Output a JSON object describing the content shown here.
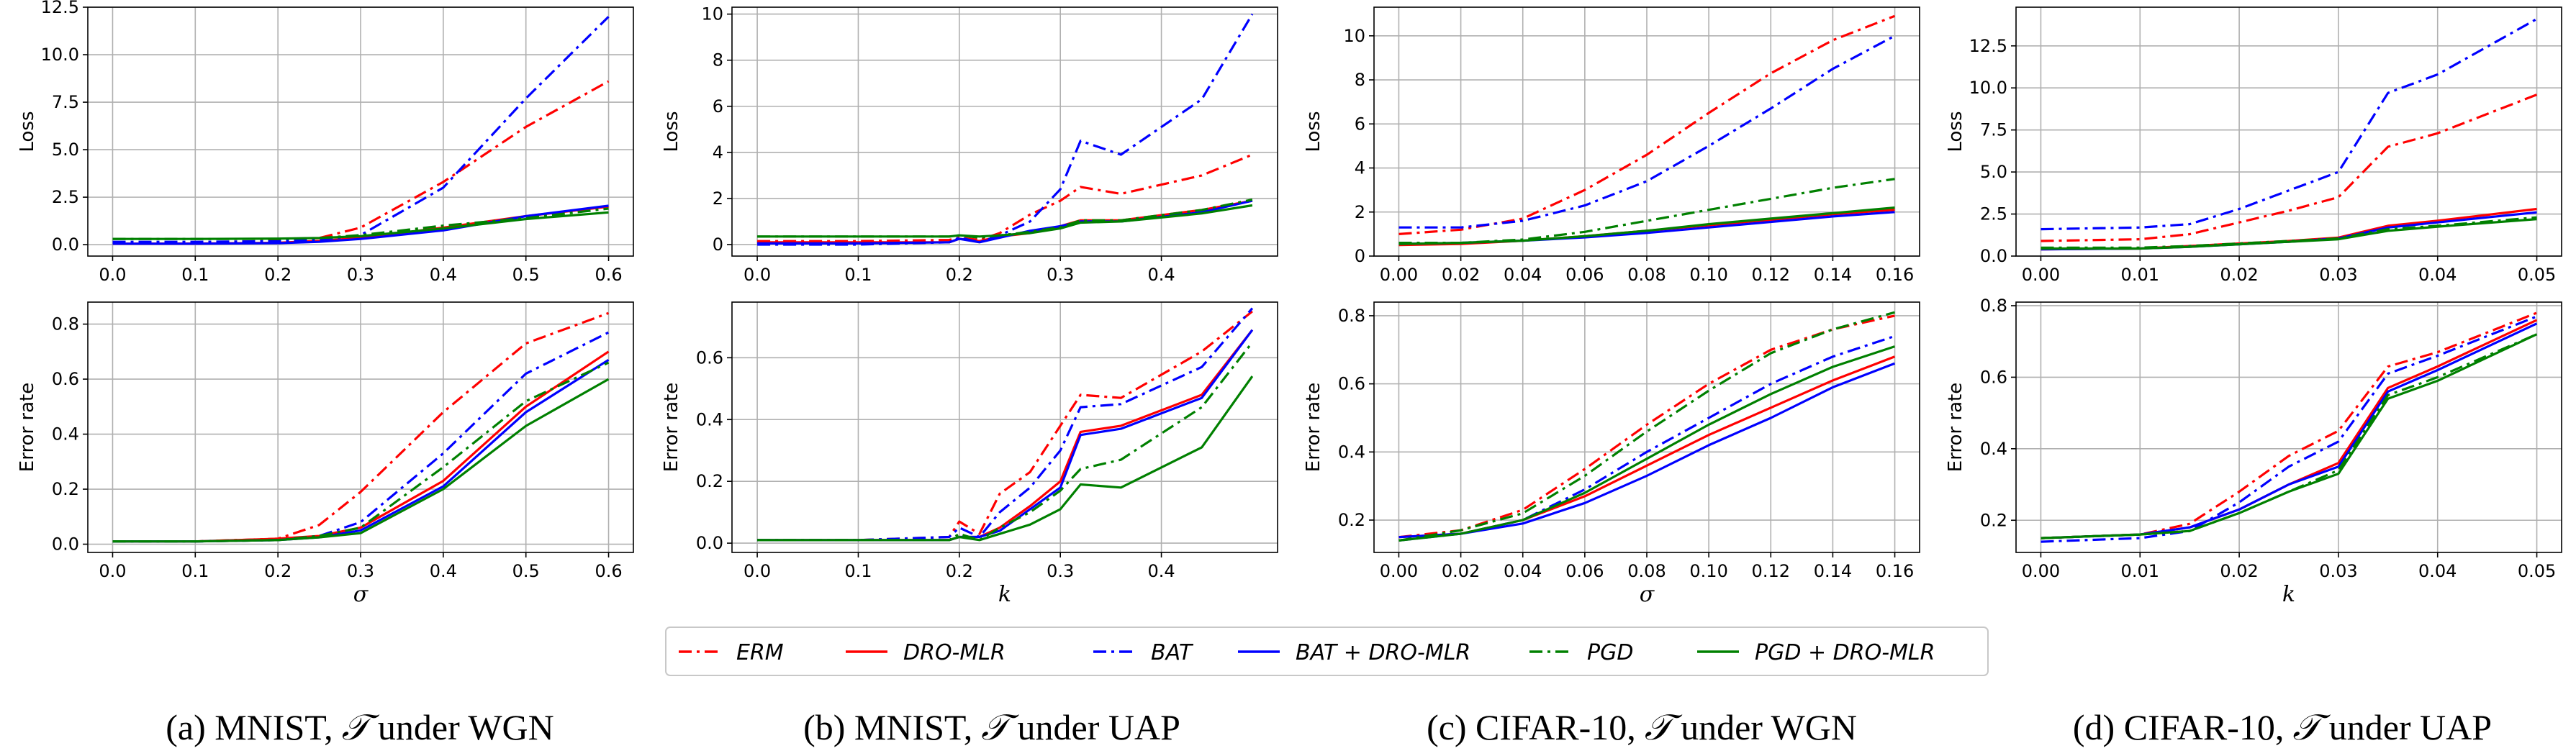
{
  "figure": {
    "captions": [
      {
        "letter": "(a) MNIST,",
        "symbol": "𝒯",
        "rest": "under WGN"
      },
      {
        "letter": "(b) MNIST,",
        "symbol": "𝒯",
        "rest": "under UAP"
      },
      {
        "letter": "(c) CIFAR-10,",
        "symbol": "𝒯",
        "rest": "under WGN"
      },
      {
        "letter": "(d) CIFAR-10,",
        "symbol": "𝒯",
        "rest": "under UAP"
      }
    ]
  },
  "legend": [
    {
      "label": "ERM",
      "color": "#ff0000",
      "dash": "dashdot"
    },
    {
      "label": "DRO-MLR",
      "color": "#ff0000",
      "dash": "solid"
    },
    {
      "label": "BAT",
      "color": "#0000ff",
      "dash": "dashdot"
    },
    {
      "label": "BAT + DRO-MLR",
      "color": "#0000ff",
      "dash": "solid"
    },
    {
      "label": "PGD",
      "color": "#008000",
      "dash": "dashdot"
    },
    {
      "label": "PGD + DRO-MLR",
      "color": "#008000",
      "dash": "solid"
    }
  ],
  "chart_data": [
    {
      "type": "line",
      "id": "a-loss",
      "ylabel": "Loss",
      "xlabel": "",
      "xlim": [
        -0.03,
        0.63
      ],
      "ylim": [
        -0.6,
        12.5
      ],
      "xticks": [
        0.0,
        0.1,
        0.2,
        0.3,
        0.4,
        0.5,
        0.6
      ],
      "xtick_labels": [
        "0.0",
        "0.1",
        "0.2",
        "0.3",
        "0.4",
        "0.5",
        "0.6"
      ],
      "yticks": [
        0.0,
        2.5,
        5.0,
        7.5,
        10.0,
        12.5
      ],
      "ytick_labels": [
        "0.0",
        "2.5",
        "5.0",
        "7.5",
        "10.0",
        "12.5"
      ],
      "x": [
        0.0,
        0.1,
        0.2,
        0.25,
        0.3,
        0.4,
        0.5,
        0.6
      ],
      "series": [
        {
          "name": "ERM",
          "values": [
            0.1,
            0.12,
            0.2,
            0.35,
            0.9,
            3.3,
            6.2,
            8.6
          ]
        },
        {
          "name": "DRO-MLR",
          "values": [
            0.05,
            0.06,
            0.1,
            0.2,
            0.35,
            0.9,
            1.5,
            2.0
          ]
        },
        {
          "name": "BAT",
          "values": [
            0.15,
            0.15,
            0.18,
            0.25,
            0.5,
            3.0,
            7.7,
            12.0
          ]
        },
        {
          "name": "BAT + DRO-MLR",
          "values": [
            0.05,
            0.05,
            0.08,
            0.15,
            0.3,
            0.75,
            1.5,
            2.05
          ]
        },
        {
          "name": "PGD",
          "values": [
            0.3,
            0.3,
            0.3,
            0.35,
            0.5,
            1.0,
            1.4,
            1.9
          ]
        },
        {
          "name": "PGD + DRO-MLR",
          "values": [
            0.3,
            0.3,
            0.32,
            0.35,
            0.45,
            0.85,
            1.35,
            1.7
          ]
        }
      ]
    },
    {
      "type": "line",
      "id": "b-loss",
      "ylabel": "Loss",
      "xlabel": "",
      "xlim": [
        -0.025,
        0.515
      ],
      "ylim": [
        -0.5,
        10.3
      ],
      "xticks": [
        0.0,
        0.1,
        0.2,
        0.3,
        0.4
      ],
      "xtick_labels": [
        "0.0",
        "0.1",
        "0.2",
        "0.3",
        "0.4"
      ],
      "yticks": [
        0,
        2,
        4,
        6,
        8,
        10
      ],
      "ytick_labels": [
        "0",
        "2",
        "4",
        "6",
        "8",
        "10"
      ],
      "x": [
        0.0,
        0.1,
        0.19,
        0.2,
        0.22,
        0.24,
        0.27,
        0.3,
        0.32,
        0.36,
        0.44,
        0.49
      ],
      "series": [
        {
          "name": "ERM",
          "values": [
            0.15,
            0.15,
            0.2,
            0.3,
            0.2,
            0.5,
            1.3,
            1.9,
            2.5,
            2.2,
            3.0,
            3.9
          ]
        },
        {
          "name": "DRO-MLR",
          "values": [
            0.1,
            0.1,
            0.1,
            0.25,
            0.15,
            0.35,
            0.5,
            0.8,
            1.05,
            1.05,
            1.5,
            1.9
          ]
        },
        {
          "name": "BAT",
          "values": [
            0.0,
            0.0,
            0.1,
            0.3,
            0.1,
            0.4,
            1.0,
            2.4,
            4.5,
            3.9,
            6.3,
            10.0
          ]
        },
        {
          "name": "BAT + DRO-MLR",
          "values": [
            0.05,
            0.05,
            0.1,
            0.25,
            0.1,
            0.3,
            0.6,
            0.8,
            1.0,
            1.0,
            1.4,
            1.9
          ]
        },
        {
          "name": "PGD",
          "values": [
            0.35,
            0.35,
            0.35,
            0.4,
            0.3,
            0.4,
            0.55,
            0.75,
            1.05,
            1.05,
            1.5,
            1.95
          ]
        },
        {
          "name": "PGD + DRO-MLR",
          "values": [
            0.35,
            0.35,
            0.35,
            0.4,
            0.35,
            0.4,
            0.5,
            0.7,
            0.95,
            1.0,
            1.35,
            1.7
          ]
        }
      ]
    },
    {
      "type": "line",
      "id": "c-loss",
      "ylabel": "Loss",
      "xlabel": "",
      "xlim": [
        -0.008,
        0.168
      ],
      "ylim": [
        0.0,
        11.3
      ],
      "xticks": [
        0.0,
        0.02,
        0.04,
        0.06,
        0.08,
        0.1,
        0.12,
        0.14,
        0.16
      ],
      "xtick_labels": [
        "0.00",
        "0.02",
        "0.04",
        "0.06",
        "0.08",
        "0.10",
        "0.12",
        "0.14",
        "0.16"
      ],
      "yticks": [
        0,
        2,
        4,
        6,
        8,
        10
      ],
      "ytick_labels": [
        "0",
        "2",
        "4",
        "6",
        "8",
        "10"
      ],
      "x": [
        0.0,
        0.02,
        0.04,
        0.06,
        0.08,
        0.1,
        0.12,
        0.14,
        0.16
      ],
      "series": [
        {
          "name": "ERM",
          "values": [
            1.0,
            1.2,
            1.7,
            3.0,
            4.6,
            6.5,
            8.3,
            9.8,
            10.9
          ]
        },
        {
          "name": "DRO-MLR",
          "values": [
            0.5,
            0.55,
            0.7,
            0.9,
            1.15,
            1.4,
            1.65,
            1.9,
            2.1
          ]
        },
        {
          "name": "BAT",
          "values": [
            1.3,
            1.3,
            1.6,
            2.3,
            3.4,
            5.0,
            6.7,
            8.5,
            10.0
          ]
        },
        {
          "name": "BAT + DRO-MLR",
          "values": [
            0.55,
            0.6,
            0.7,
            0.85,
            1.05,
            1.3,
            1.55,
            1.8,
            2.0
          ]
        },
        {
          "name": "PGD",
          "values": [
            0.6,
            0.6,
            0.75,
            1.1,
            1.6,
            2.1,
            2.6,
            3.1,
            3.5
          ]
        },
        {
          "name": "PGD + DRO-MLR",
          "values": [
            0.55,
            0.6,
            0.7,
            0.9,
            1.15,
            1.45,
            1.7,
            1.95,
            2.2
          ]
        }
      ]
    },
    {
      "type": "line",
      "id": "d-loss",
      "ylabel": "Loss",
      "xlabel": "",
      "xlim": [
        -0.0025,
        0.0525
      ],
      "ylim": [
        0.0,
        14.8
      ],
      "xticks": [
        0.0,
        0.01,
        0.02,
        0.03,
        0.04,
        0.05
      ],
      "xtick_labels": [
        "0.00",
        "0.01",
        "0.02",
        "0.03",
        "0.04",
        "0.05"
      ],
      "yticks": [
        0.0,
        2.5,
        5.0,
        7.5,
        10.0,
        12.5
      ],
      "ytick_labels": [
        "0.0",
        "2.5",
        "5.0",
        "7.5",
        "10.0",
        "12.5"
      ],
      "x": [
        0.0,
        0.01,
        0.015,
        0.02,
        0.025,
        0.03,
        0.035,
        0.04,
        0.05
      ],
      "series": [
        {
          "name": "ERM",
          "values": [
            0.9,
            1.0,
            1.3,
            2.0,
            2.7,
            3.5,
            6.5,
            7.3,
            9.6
          ]
        },
        {
          "name": "DRO-MLR",
          "values": [
            0.4,
            0.45,
            0.6,
            0.75,
            0.9,
            1.1,
            1.8,
            2.1,
            2.8
          ]
        },
        {
          "name": "BAT",
          "values": [
            1.6,
            1.7,
            1.9,
            2.8,
            3.9,
            5.0,
            9.7,
            10.8,
            14.1
          ]
        },
        {
          "name": "BAT + DRO-MLR",
          "values": [
            0.4,
            0.45,
            0.55,
            0.7,
            0.85,
            1.05,
            1.7,
            2.0,
            2.6
          ]
        },
        {
          "name": "PGD",
          "values": [
            0.5,
            0.5,
            0.6,
            0.75,
            0.9,
            1.05,
            1.6,
            1.8,
            2.3
          ]
        },
        {
          "name": "PGD + DRO-MLR",
          "values": [
            0.45,
            0.45,
            0.55,
            0.7,
            0.85,
            1.0,
            1.5,
            1.75,
            2.2
          ]
        }
      ]
    },
    {
      "type": "line",
      "id": "a-err",
      "ylabel": "Error rate",
      "xlabel": "σ",
      "xlim": [
        -0.03,
        0.63
      ],
      "ylim": [
        -0.03,
        0.88
      ],
      "xticks": [
        0.0,
        0.1,
        0.2,
        0.3,
        0.4,
        0.5,
        0.6
      ],
      "xtick_labels": [
        "0.0",
        "0.1",
        "0.2",
        "0.3",
        "0.4",
        "0.5",
        "0.6"
      ],
      "yticks": [
        0.0,
        0.2,
        0.4,
        0.6,
        0.8
      ],
      "ytick_labels": [
        "0.0",
        "0.2",
        "0.4",
        "0.6",
        "0.8"
      ],
      "x": [
        0.0,
        0.1,
        0.2,
        0.25,
        0.3,
        0.4,
        0.5,
        0.6
      ],
      "series": [
        {
          "name": "ERM",
          "values": [
            0.01,
            0.01,
            0.02,
            0.07,
            0.19,
            0.48,
            0.73,
            0.84
          ]
        },
        {
          "name": "DRO-MLR",
          "values": [
            0.01,
            0.01,
            0.02,
            0.03,
            0.06,
            0.23,
            0.5,
            0.7
          ]
        },
        {
          "name": "BAT",
          "values": [
            0.01,
            0.01,
            0.015,
            0.03,
            0.08,
            0.33,
            0.62,
            0.77
          ]
        },
        {
          "name": "BAT + DRO-MLR",
          "values": [
            0.01,
            0.01,
            0.015,
            0.025,
            0.05,
            0.21,
            0.48,
            0.67
          ]
        },
        {
          "name": "PGD",
          "values": [
            0.01,
            0.01,
            0.015,
            0.03,
            0.06,
            0.28,
            0.52,
            0.66
          ]
        },
        {
          "name": "PGD + DRO-MLR",
          "values": [
            0.01,
            0.01,
            0.015,
            0.025,
            0.04,
            0.2,
            0.43,
            0.6
          ]
        }
      ]
    },
    {
      "type": "line",
      "id": "b-err",
      "ylabel": "Error rate",
      "xlabel": "k",
      "xlim": [
        -0.025,
        0.515
      ],
      "ylim": [
        -0.03,
        0.78
      ],
      "xticks": [
        0.0,
        0.1,
        0.2,
        0.3,
        0.4
      ],
      "xtick_labels": [
        "0.0",
        "0.1",
        "0.2",
        "0.3",
        "0.4"
      ],
      "yticks": [
        0.0,
        0.2,
        0.4,
        0.6
      ],
      "ytick_labels": [
        "0.0",
        "0.2",
        "0.4",
        "0.6"
      ],
      "x": [
        0.0,
        0.1,
        0.19,
        0.2,
        0.22,
        0.24,
        0.27,
        0.3,
        0.32,
        0.36,
        0.44,
        0.49
      ],
      "series": [
        {
          "name": "ERM",
          "values": [
            0.01,
            0.01,
            0.02,
            0.07,
            0.03,
            0.16,
            0.23,
            0.38,
            0.48,
            0.47,
            0.62,
            0.75
          ]
        },
        {
          "name": "DRO-MLR",
          "values": [
            0.01,
            0.01,
            0.01,
            0.02,
            0.02,
            0.05,
            0.12,
            0.2,
            0.36,
            0.38,
            0.48,
            0.69
          ]
        },
        {
          "name": "BAT",
          "values": [
            0.01,
            0.01,
            0.02,
            0.05,
            0.02,
            0.1,
            0.18,
            0.3,
            0.44,
            0.45,
            0.57,
            0.76
          ]
        },
        {
          "name": "BAT + DRO-MLR",
          "values": [
            0.01,
            0.01,
            0.01,
            0.02,
            0.02,
            0.04,
            0.11,
            0.18,
            0.35,
            0.37,
            0.47,
            0.69
          ]
        },
        {
          "name": "PGD",
          "values": [
            0.01,
            0.01,
            0.01,
            0.03,
            0.01,
            0.05,
            0.1,
            0.17,
            0.24,
            0.27,
            0.44,
            0.65
          ]
        },
        {
          "name": "PGD + DRO-MLR",
          "values": [
            0.01,
            0.01,
            0.01,
            0.02,
            0.01,
            0.03,
            0.06,
            0.11,
            0.19,
            0.18,
            0.31,
            0.54
          ]
        }
      ]
    },
    {
      "type": "line",
      "id": "c-err",
      "ylabel": "Error rate",
      "xlabel": "σ",
      "xlim": [
        -0.008,
        0.168
      ],
      "ylim": [
        0.105,
        0.84
      ],
      "xticks": [
        0.0,
        0.02,
        0.04,
        0.06,
        0.08,
        0.1,
        0.12,
        0.14,
        0.16
      ],
      "xtick_labels": [
        "0.00",
        "0.02",
        "0.04",
        "0.06",
        "0.08",
        "0.10",
        "0.12",
        "0.14",
        "0.16"
      ],
      "yticks": [
        0.2,
        0.4,
        0.6,
        0.8
      ],
      "ytick_labels": [
        "0.2",
        "0.4",
        "0.6",
        "0.8"
      ],
      "x": [
        0.0,
        0.02,
        0.04,
        0.06,
        0.08,
        0.1,
        0.12,
        0.14,
        0.16
      ],
      "series": [
        {
          "name": "ERM",
          "values": [
            0.15,
            0.17,
            0.23,
            0.35,
            0.48,
            0.6,
            0.7,
            0.76,
            0.8
          ]
        },
        {
          "name": "DRO-MLR",
          "values": [
            0.15,
            0.16,
            0.2,
            0.27,
            0.36,
            0.45,
            0.53,
            0.61,
            0.68
          ]
        },
        {
          "name": "BAT",
          "values": [
            0.14,
            0.16,
            0.2,
            0.29,
            0.4,
            0.5,
            0.6,
            0.68,
            0.74
          ]
        },
        {
          "name": "BAT + DRO-MLR",
          "values": [
            0.15,
            0.16,
            0.19,
            0.25,
            0.33,
            0.42,
            0.5,
            0.59,
            0.66
          ]
        },
        {
          "name": "PGD",
          "values": [
            0.14,
            0.17,
            0.22,
            0.33,
            0.46,
            0.58,
            0.69,
            0.76,
            0.81
          ]
        },
        {
          "name": "PGD + DRO-MLR",
          "values": [
            0.14,
            0.16,
            0.2,
            0.28,
            0.38,
            0.48,
            0.57,
            0.65,
            0.71
          ]
        }
      ]
    },
    {
      "type": "line",
      "id": "d-err",
      "ylabel": "Error rate",
      "xlabel": "k",
      "xlim": [
        -0.0025,
        0.0525
      ],
      "ylim": [
        0.11,
        0.81
      ],
      "xticks": [
        0.0,
        0.01,
        0.02,
        0.03,
        0.04,
        0.05
      ],
      "xtick_labels": [
        "0.00",
        "0.01",
        "0.02",
        "0.03",
        "0.04",
        "0.05"
      ],
      "yticks": [
        0.2,
        0.4,
        0.6,
        0.8
      ],
      "ytick_labels": [
        "0.2",
        "0.4",
        "0.6",
        "0.8"
      ],
      "x": [
        0.0,
        0.01,
        0.015,
        0.02,
        0.025,
        0.03,
        0.035,
        0.04,
        0.05
      ],
      "series": [
        {
          "name": "ERM",
          "values": [
            0.15,
            0.16,
            0.19,
            0.28,
            0.38,
            0.45,
            0.63,
            0.67,
            0.78
          ]
        },
        {
          "name": "DRO-MLR",
          "values": [
            0.15,
            0.16,
            0.18,
            0.23,
            0.3,
            0.36,
            0.57,
            0.63,
            0.76
          ]
        },
        {
          "name": "BAT",
          "values": [
            0.14,
            0.15,
            0.17,
            0.25,
            0.35,
            0.42,
            0.61,
            0.66,
            0.77
          ]
        },
        {
          "name": "BAT + DRO-MLR",
          "values": [
            0.15,
            0.16,
            0.18,
            0.23,
            0.3,
            0.35,
            0.56,
            0.62,
            0.75
          ]
        },
        {
          "name": "PGD",
          "values": [
            0.15,
            0.16,
            0.17,
            0.22,
            0.28,
            0.34,
            0.55,
            0.6,
            0.72
          ]
        },
        {
          "name": "PGD + DRO-MLR",
          "values": [
            0.15,
            0.16,
            0.17,
            0.22,
            0.28,
            0.33,
            0.54,
            0.59,
            0.72
          ]
        }
      ]
    }
  ]
}
